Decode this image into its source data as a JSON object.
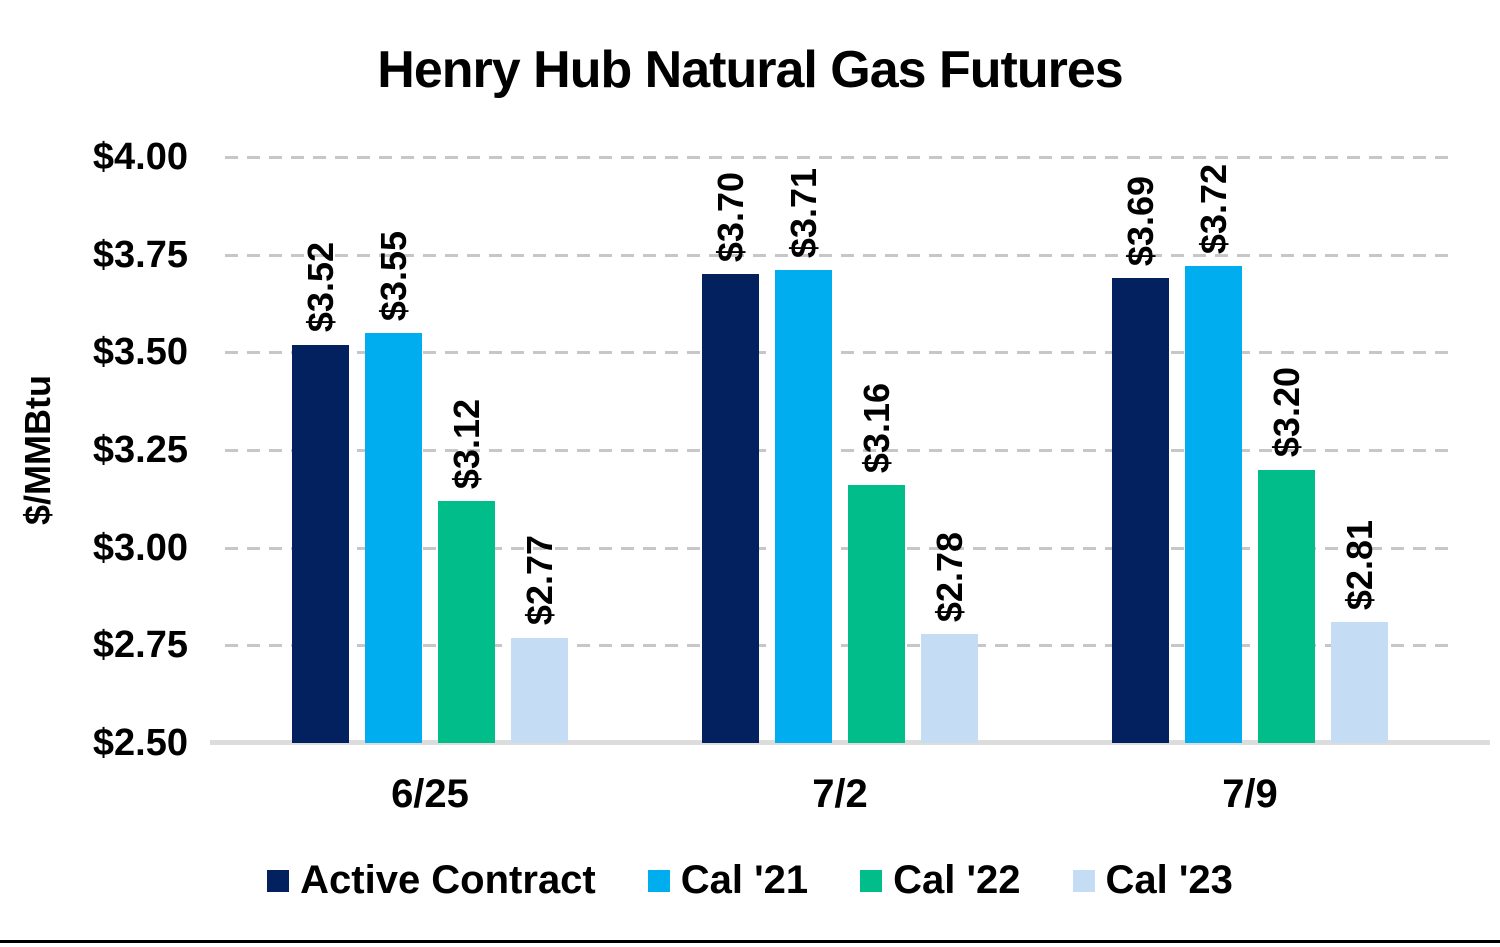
{
  "chart_data": {
    "type": "bar",
    "title": "Henry Hub Natural Gas Futures",
    "ylabel": "$/MMBtu",
    "xlabel": "",
    "categories": [
      "6/25",
      "7/2",
      "7/9"
    ],
    "series": [
      {
        "name": "Active Contract",
        "color": "#03215f",
        "values": [
          3.52,
          3.7,
          3.69
        ],
        "labels": [
          "$3.52",
          "$3.70",
          "$3.69"
        ]
      },
      {
        "name": "Cal '21",
        "color": "#00aeef",
        "values": [
          3.55,
          3.71,
          3.72
        ],
        "labels": [
          "$3.55",
          "$3.71",
          "$3.72"
        ]
      },
      {
        "name": "Cal '22",
        "color": "#00bd89",
        "values": [
          3.12,
          3.16,
          3.2
        ],
        "labels": [
          "$3.12",
          "$3.16",
          "$3.20"
        ]
      },
      {
        "name": "Cal '23",
        "color": "#c5dcf5",
        "values": [
          2.77,
          2.78,
          2.81
        ],
        "labels": [
          "$2.77",
          "$2.78",
          "$2.81"
        ]
      }
    ],
    "ylim": [
      2.5,
      4.0
    ],
    "ytick_step": 0.25,
    "ytick_labels": [
      "$2.50",
      "$2.75",
      "$3.00",
      "$3.25",
      "$3.50",
      "$3.75",
      "$4.00"
    ],
    "grid": "horizontal-dashed",
    "legend_position": "bottom"
  },
  "colors": {
    "background": "#ffffff",
    "gridline": "#c7c7c7",
    "axis_line": "#dcdcdc",
    "text": "#000000",
    "bottom_rule": "#000000"
  }
}
